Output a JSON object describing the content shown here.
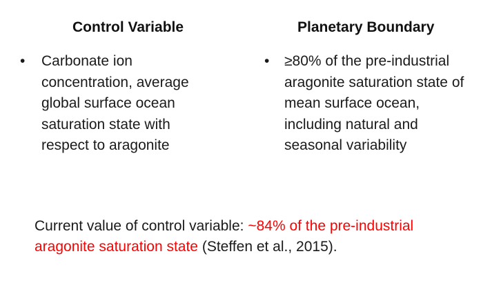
{
  "headers": {
    "control_variable": "Control Variable",
    "planetary_boundary": "Planetary Boundary"
  },
  "bullet_symbol": "•",
  "control_variable_bullet": {
    "lines": [
      "Carbonate ion",
      "concentration, average",
      "global surface ocean",
      "saturation state with",
      "respect to aragonite"
    ]
  },
  "planetary_boundary_bullet": {
    "lines": [
      "≥80% of the pre-industrial",
      "aragonite saturation state of",
      "mean surface ocean,",
      "including natural and",
      "seasonal variability"
    ]
  },
  "current_value": {
    "prefix": "Current value of control variable: ",
    "highlight_line1": "~84% of the pre-industrial",
    "highlight_line2": "aragonite saturation state",
    "suffix": " (Steffen et al., 2015).",
    "highlight_color": "#ff0000"
  }
}
